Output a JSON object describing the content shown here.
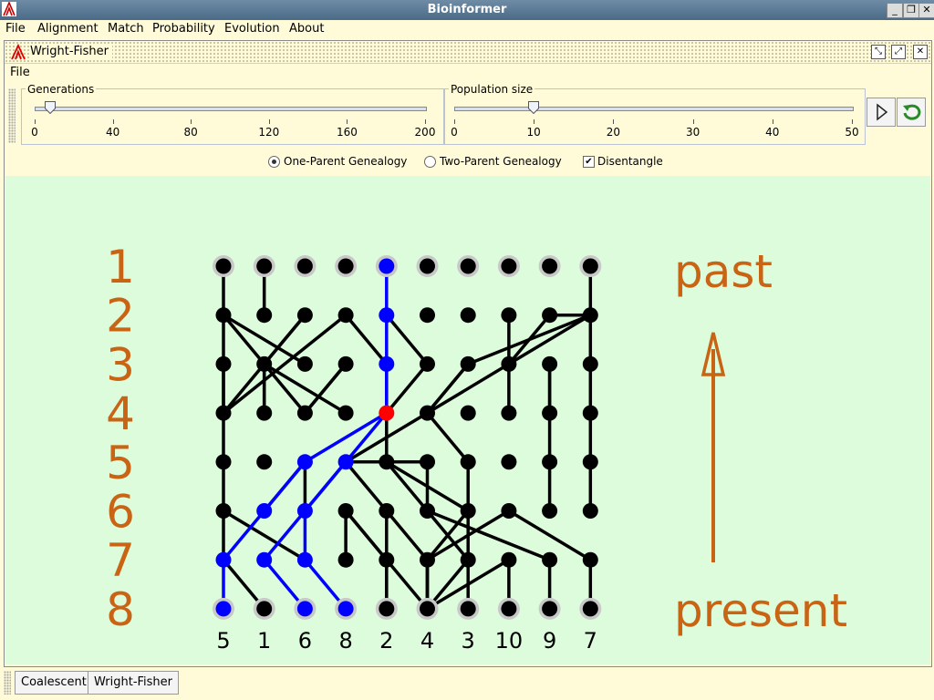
{
  "window": {
    "title": "Bioinformer"
  },
  "menu": [
    "File",
    "Alignment",
    "Match",
    "Probability",
    "Evolution",
    "About"
  ],
  "frame": {
    "title": "Wright-Fisher",
    "file_menu": "File"
  },
  "controls": {
    "generations": {
      "label": "Generations",
      "value": 8,
      "ticks": [
        "0",
        "40",
        "80",
        "120",
        "160",
        "200"
      ],
      "min": 0,
      "max": 200
    },
    "population": {
      "label": "Population size",
      "value": 10,
      "ticks": [
        "0",
        "10",
        "20",
        "30",
        "40",
        "50"
      ],
      "min": 0,
      "max": 50
    },
    "play_icon": "play-icon",
    "reset_icon": "reset-icon"
  },
  "options": {
    "one_parent": "One-Parent Genealogy",
    "two_parent": "Two-Parent Genealogy",
    "disentangle": "Disentangle",
    "selected": "one_parent",
    "disentangle_checked": true
  },
  "plot": {
    "generation_labels": [
      "1",
      "2",
      "3",
      "4",
      "5",
      "6",
      "7",
      "8"
    ],
    "bottom_labels": [
      "5",
      "1",
      "6",
      "8",
      "2",
      "4",
      "3",
      "10",
      "9",
      "7"
    ],
    "past_label": "past",
    "present_label": "present",
    "black_edges": [
      [
        0,
        0,
        1,
        0
      ],
      [
        1,
        0,
        2,
        0
      ],
      [
        2,
        0,
        3,
        0
      ],
      [
        2,
        0,
        4,
        0
      ],
      [
        4,
        0,
        5,
        0
      ],
      [
        5,
        0,
        6,
        0
      ],
      [
        6,
        0,
        7,
        1
      ],
      [
        1,
        0,
        2,
        2
      ],
      [
        1,
        2,
        2,
        1
      ],
      [
        3,
        1,
        2,
        1
      ],
      [
        1,
        0,
        2,
        1
      ],
      [
        2,
        1,
        3,
        1
      ],
      [
        2,
        1,
        3,
        2
      ],
      [
        2,
        1,
        3,
        3
      ],
      [
        3,
        2,
        2,
        3
      ],
      [
        2,
        3,
        3,
        2
      ],
      [
        0,
        1,
        1,
        1
      ],
      [
        3,
        0,
        1,
        2
      ],
      [
        3,
        0,
        1,
        3
      ],
      [
        1,
        3,
        2,
        4
      ],
      [
        4,
        2,
        5,
        1
      ],
      [
        4,
        2,
        5,
        2
      ],
      [
        5,
        0,
        6,
        2
      ],
      [
        3,
        5,
        4,
        6
      ],
      [
        3,
        5,
        4,
        3
      ],
      [
        4,
        5,
        4,
        3
      ],
      [
        5,
        5,
        4,
        4
      ],
      [
        5,
        5,
        4,
        5
      ],
      [
        6,
        5,
        5,
        4
      ],
      [
        6,
        5,
        5,
        6
      ],
      [
        6,
        5,
        5,
        7
      ],
      [
        7,
        5,
        6,
        4
      ],
      [
        7,
        5,
        6,
        5
      ],
      [
        7,
        5,
        6,
        6
      ],
      [
        7,
        5,
        6,
        7
      ],
      [
        6,
        4,
        5,
        3
      ],
      [
        6,
        4,
        5,
        4
      ],
      [
        6,
        6,
        5,
        5
      ],
      [
        5,
        6,
        4,
        4
      ],
      [
        4,
        6,
        4,
        6
      ],
      [
        1,
        4,
        2,
        5
      ],
      [
        2,
        5,
        3,
        4
      ],
      [
        2,
        6,
        3,
        5
      ],
      [
        3,
        5,
        2,
        6
      ],
      [
        4,
        3,
        5,
        4
      ],
      [
        4,
        4,
        3,
        4
      ],
      [
        3,
        4,
        2,
        4
      ],
      [
        2,
        7,
        3,
        5
      ],
      [
        3,
        7,
        2,
        7
      ],
      [
        2,
        7,
        1,
        7
      ],
      [
        3,
        8,
        2,
        8
      ],
      [
        1,
        8,
        2,
        7
      ],
      [
        1,
        8,
        1,
        9
      ],
      [
        2,
        8,
        3,
        8
      ],
      [
        3,
        8,
        4,
        8
      ],
      [
        0,
        9,
        1,
        9
      ],
      [
        1,
        9,
        2,
        6
      ],
      [
        1,
        9,
        2,
        7
      ],
      [
        1,
        9,
        2,
        9
      ],
      [
        2,
        9,
        3,
        9
      ],
      [
        3,
        9,
        4,
        9
      ],
      [
        4,
        9,
        5,
        9
      ],
      [
        4,
        8,
        5,
        8
      ],
      [
        4,
        8,
        4,
        8
      ],
      [
        5,
        6,
        6,
        6
      ],
      [
        6,
        6,
        7,
        6
      ],
      [
        6,
        7,
        7,
        7
      ],
      [
        5,
        5,
        6,
        8
      ],
      [
        6,
        8,
        7,
        8
      ],
      [
        5,
        7,
        6,
        9
      ],
      [
        6,
        9,
        7,
        9
      ],
      [
        6,
        5,
        7,
        5
      ],
      [
        7,
        5,
        6,
        5
      ],
      [
        4,
        6,
        5,
        6
      ],
      [
        6,
        4,
        7,
        4
      ],
      [
        5,
        3,
        6,
        3
      ],
      [
        6,
        4,
        5,
        3
      ],
      [
        7,
        4,
        6,
        4
      ]
    ],
    "blue_path": [
      [
        0,
        4,
        1,
        4
      ],
      [
        1,
        4,
        2,
        4
      ],
      [
        2,
        4,
        3,
        4
      ],
      [
        3,
        4,
        4,
        2
      ],
      [
        3,
        4,
        4,
        3
      ],
      [
        4,
        2,
        5,
        1
      ],
      [
        4,
        3,
        5,
        2
      ],
      [
        5,
        1,
        6,
        0
      ],
      [
        6,
        0,
        7,
        0
      ],
      [
        5,
        2,
        6,
        1
      ],
      [
        6,
        1,
        7,
        2
      ],
      [
        5,
        2,
        6,
        2
      ],
      [
        6,
        2,
        7,
        3
      ],
      [
        4,
        3,
        5,
        2
      ]
    ],
    "blue_nodes": [
      [
        0,
        4
      ],
      [
        1,
        4
      ],
      [
        2,
        4
      ],
      [
        4,
        2
      ],
      [
        4,
        3
      ],
      [
        5,
        1
      ],
      [
        5,
        2
      ],
      [
        6,
        0
      ],
      [
        6,
        1
      ],
      [
        6,
        2
      ],
      [
        7,
        0
      ],
      [
        7,
        2
      ],
      [
        7,
        3
      ]
    ],
    "red_nodes": [
      [
        3,
        4
      ]
    ],
    "colors": {
      "accent": "#c86414",
      "blue": "#0000ff",
      "red": "#ff0000",
      "bg": "#dcfcdc"
    }
  },
  "tabs": [
    "Coalescent",
    "Wright-Fisher"
  ]
}
